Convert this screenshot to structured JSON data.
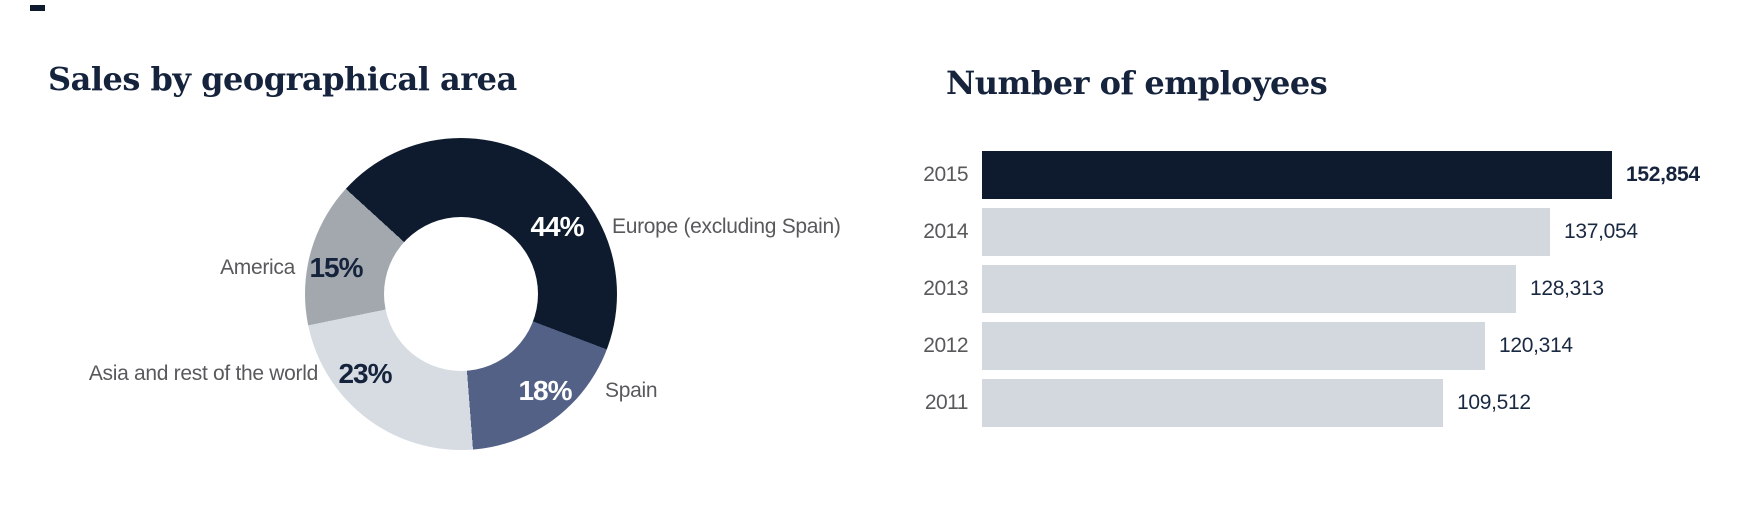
{
  "page": {
    "background": "#ffffff",
    "text_gray": "#58595b",
    "text_navy": "#15233d"
  },
  "chart_data": [
    {
      "type": "pie",
      "subtype": "donut",
      "title": "Sales by geographical area",
      "legend_position": "around-slices",
      "start_angle_deg": -47.6,
      "slices": [
        {
          "label": "Europe (excluding Spain)",
          "value_pct": 44,
          "pct_label": "44%",
          "color": "#0e1b2e",
          "pct_label_color": "#ffffff"
        },
        {
          "label": "Spain",
          "value_pct": 18,
          "pct_label": "18%",
          "color": "#526185",
          "pct_label_color": "#ffffff"
        },
        {
          "label": "Asia and rest of the world",
          "value_pct": 23,
          "pct_label": "23%",
          "color": "#d6dce2",
          "pct_label_color": "#15233d"
        },
        {
          "label": "America",
          "value_pct": 15,
          "pct_label": "15%",
          "color": "#a2a8ad",
          "pct_label_color": "#15233d"
        }
      ]
    },
    {
      "type": "bar",
      "orientation": "horizontal",
      "title": "Number of employees",
      "categories": [
        "2015",
        "2014",
        "2013",
        "2012",
        "2011"
      ],
      "values": [
        152854,
        137054,
        128313,
        120314,
        109512
      ],
      "value_labels": [
        "152,854",
        "137,054",
        "128,313",
        "120,314",
        "109,512"
      ],
      "bar_colors": [
        "#0e1b2e",
        "#d2d8dd",
        "#d2d8dd",
        "#d2d8dd",
        "#d2d8dd"
      ],
      "highlight_category": "2015",
      "xlim": [
        0,
        152854
      ],
      "grid": false
    }
  ]
}
